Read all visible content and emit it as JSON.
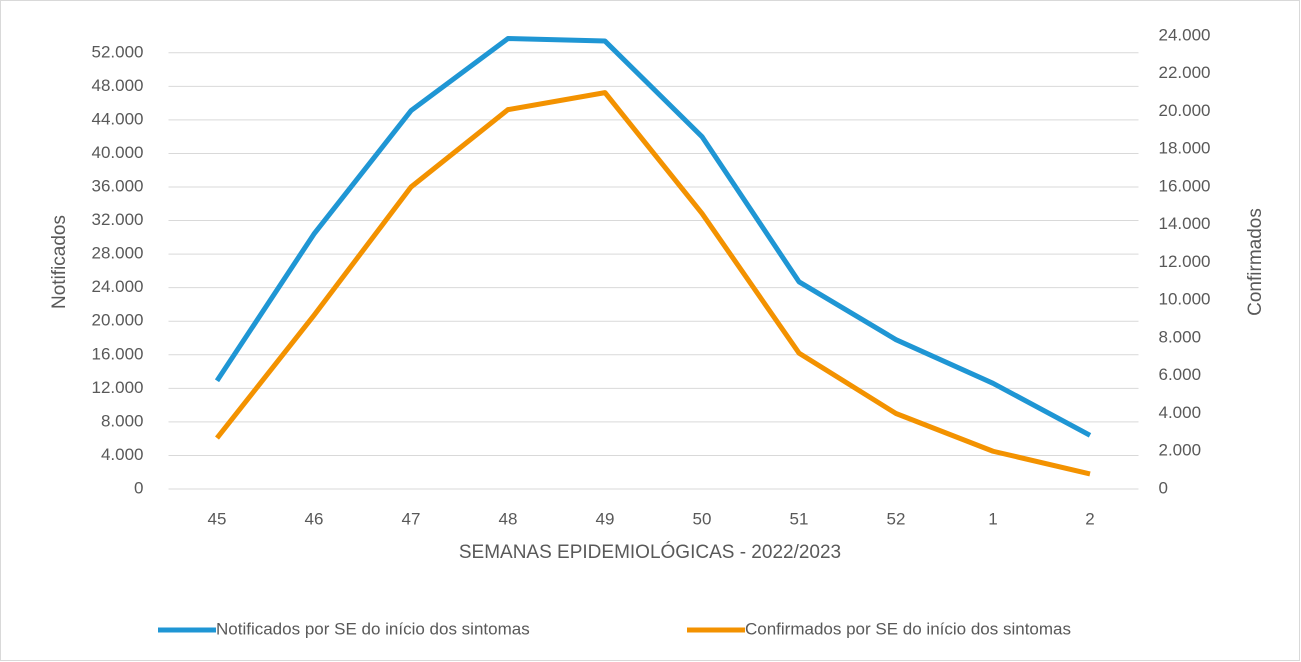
{
  "chart_data": {
    "type": "line",
    "xlabel": "SEMANAS EPIDEMIOLÓGICAS - 2022/2023",
    "ylabel": "Notificados",
    "y2label": "Confirmados",
    "categories": [
      "45",
      "46",
      "47",
      "48",
      "49",
      "50",
      "51",
      "52",
      "1",
      "2"
    ],
    "series": [
      {
        "name": "Notificados por SE do início dos sintomas",
        "color": "#1f96d4",
        "values": [
          12900,
          30400,
          45100,
          53700,
          53400,
          42000,
          24700,
          17800,
          12600,
          6400
        ]
      },
      {
        "name": "Confirmados por SE do início dos sintomas",
        "color": "#f39200",
        "axis": "y2",
        "values": [
          2700,
          9200,
          16000,
          20100,
          21000,
          14600,
          7200,
          4000,
          2000,
          800
        ]
      }
    ],
    "ylim": [
      0,
      54000
    ],
    "yticks": [
      0,
      {
        "value": 4000,
        "label": "4.000"
      },
      {
        "value": 8000,
        "label": "8.000"
      },
      {
        "value": 12000,
        "label": "12.000"
      },
      {
        "value": 16000,
        "label": "16.000"
      },
      {
        "value": 20000,
        "label": "20.000"
      },
      {
        "value": 24000,
        "label": "24.000"
      },
      {
        "value": 28000,
        "label": "28.000"
      },
      {
        "value": 32000,
        "label": "32.000"
      },
      {
        "value": 36000,
        "label": "36.000"
      },
      {
        "value": 40000,
        "label": "40.000"
      },
      {
        "value": 44000,
        "label": "44.000"
      },
      {
        "value": 48000,
        "label": "48.000"
      },
      {
        "value": 52000,
        "label": "52.000"
      }
    ],
    "y2lim": [
      0,
      24000
    ],
    "y2ticks": [
      0,
      {
        "value": 2000,
        "label": "2.000"
      },
      {
        "value": 4000,
        "label": "4.000"
      },
      {
        "value": 6000,
        "label": "6.000"
      },
      {
        "value": 8000,
        "label": "8.000"
      },
      {
        "value": 10000,
        "label": "10.000"
      },
      {
        "value": 12000,
        "label": "12.000"
      },
      {
        "value": 14000,
        "label": "14.000"
      },
      {
        "value": 16000,
        "label": "16.000"
      },
      {
        "value": 18000,
        "label": "18.000"
      },
      {
        "value": 20000,
        "label": "20.000"
      },
      {
        "value": 22000,
        "label": "22.000"
      },
      {
        "value": 24000,
        "label": "24.000"
      }
    ],
    "grid": true,
    "legend": "bottom"
  }
}
